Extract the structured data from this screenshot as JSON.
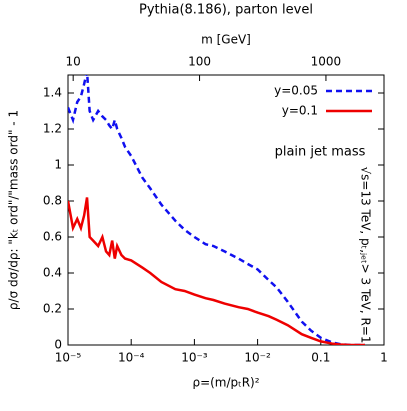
{
  "chart_data": {
    "type": "line",
    "title": "Pythia(8.186), parton level",
    "x_label": "ρ=(m/pₜR)²",
    "y_label": "ρ/σ dσ/dρ: \"kₜ ord\"/\"mass ord\" - 1",
    "x2_label": "m [GeV]",
    "annotations": [
      "plain jet mass",
      "√s=13 TeV, pₜ,ⱼₑₜ> 3 TeV, R=1"
    ],
    "x": [
      1e-05,
      1.2e-05,
      1.4e-05,
      1.6e-05,
      1.8e-05,
      2e-05,
      2.2e-05,
      2.5e-05,
      3e-05,
      3.5e-05,
      4e-05,
      4.5e-05,
      5e-05,
      5.5e-05,
      6e-05,
      7e-05,
      8e-05,
      0.0001,
      0.00015,
      0.0002,
      0.0003,
      0.0005,
      0.0007,
      0.001,
      0.0015,
      0.002,
      0.003,
      0.005,
      0.007,
      0.01,
      0.015,
      0.02,
      0.03,
      0.05,
      0.07,
      0.1,
      0.15,
      0.2,
      0.3,
      0.5
    ],
    "series": [
      {
        "name": "y=0.05",
        "color": "#1010f0",
        "dash": true,
        "values": [
          1.32,
          1.25,
          1.35,
          1.38,
          1.45,
          1.52,
          1.3,
          1.25,
          1.3,
          1.27,
          1.25,
          1.22,
          1.2,
          1.25,
          1.2,
          1.15,
          1.1,
          1.05,
          0.93,
          0.87,
          0.78,
          0.69,
          0.64,
          0.6,
          0.56,
          0.55,
          0.52,
          0.48,
          0.45,
          0.42,
          0.36,
          0.32,
          0.24,
          0.13,
          0.08,
          0.04,
          0.015,
          0.005,
          0,
          0
        ]
      },
      {
        "name": "y=0.1",
        "color": "#ee0000",
        "dash": false,
        "values": [
          0.8,
          0.65,
          0.7,
          0.65,
          0.72,
          0.82,
          0.6,
          0.58,
          0.55,
          0.6,
          0.52,
          0.5,
          0.58,
          0.48,
          0.55,
          0.5,
          0.48,
          0.47,
          0.43,
          0.4,
          0.35,
          0.31,
          0.3,
          0.28,
          0.26,
          0.25,
          0.23,
          0.21,
          0.2,
          0.18,
          0.16,
          0.14,
          0.11,
          0.06,
          0.04,
          0.02,
          0.008,
          0.003,
          0,
          0
        ]
      }
    ],
    "xlim": [
      1e-05,
      1
    ],
    "x_log": true,
    "xticks": [
      {
        "value": 1e-05,
        "label": "10⁻⁵"
      },
      {
        "value": 0.0001,
        "label": "10⁻⁴"
      },
      {
        "value": 0.001,
        "label": "10⁻³"
      },
      {
        "value": 0.01,
        "label": "10⁻²"
      },
      0.1,
      1
    ],
    "x2lim": [
      9.1,
      2880
    ],
    "x2ticks": [
      10,
      100,
      1000
    ],
    "ylim": [
      0,
      1.5
    ],
    "yticks": [
      0,
      0.2,
      0.4,
      0.6,
      0.8,
      1,
      1.2,
      1.4
    ],
    "legend": "top-right"
  }
}
